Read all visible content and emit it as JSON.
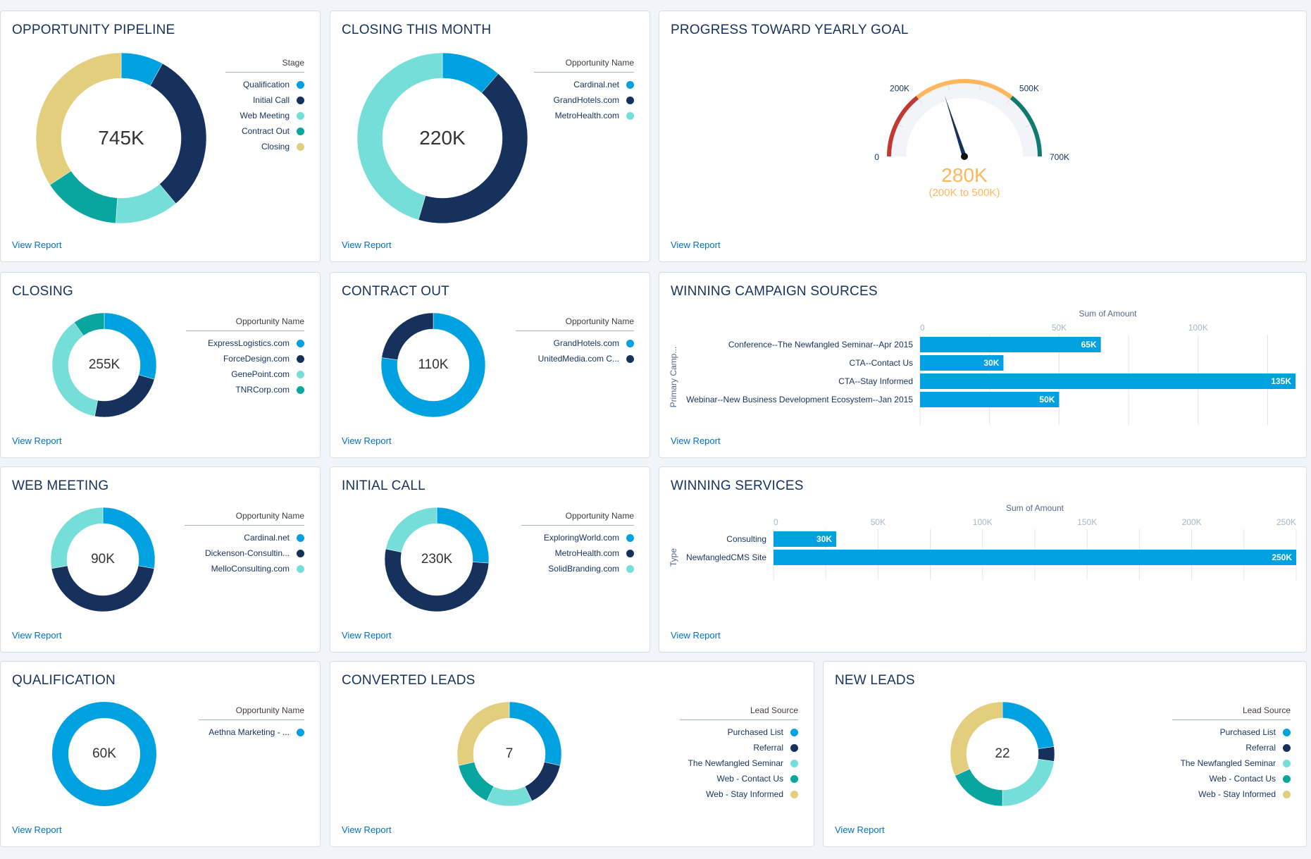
{
  "colors": {
    "blue": "#00a1e0",
    "navy": "#16325c",
    "turquoise": "#76ded9",
    "teal": "#08a69e",
    "gold": "#e2ce7d",
    "gauge_red": "#c23934",
    "gauge_orange": "#ffb75d",
    "gauge_green": "#107a6e",
    "link": "#0070d2"
  },
  "view_report_label": "View Report",
  "cards": {
    "pipeline": {
      "title": "OPPORTUNITY PIPELINE",
      "center": "745K",
      "legend_title": "Stage",
      "legend": [
        {
          "label": "Qualification",
          "color": "#00a1e0"
        },
        {
          "label": "Initial Call",
          "color": "#16325c"
        },
        {
          "label": "Web Meeting",
          "color": "#76ded9"
        },
        {
          "label": "Contract Out",
          "color": "#08a69e"
        },
        {
          "label": "Closing",
          "color": "#e2ce7d"
        }
      ]
    },
    "closing_month": {
      "title": "CLOSING THIS MONTH",
      "center": "220K",
      "legend_title": "Opportunity Name",
      "legend": [
        {
          "label": "Cardinal.net",
          "color": "#00a1e0"
        },
        {
          "label": "GrandHotels.com",
          "color": "#16325c"
        },
        {
          "label": "MetroHealth.com",
          "color": "#76ded9"
        }
      ]
    },
    "goal": {
      "title": "PROGRESS TOWARD YEARLY GOAL",
      "value_label": "280K",
      "range_label": "(200K to 500K)",
      "tick_labels": [
        "0",
        "200K",
        "500K",
        "700K"
      ]
    },
    "closing": {
      "title": "CLOSING",
      "center": "255K",
      "legend_title": "Opportunity Name",
      "legend": [
        {
          "label": "ExpressLogistics.com",
          "color": "#00a1e0"
        },
        {
          "label": "ForceDesign.com",
          "color": "#16325c"
        },
        {
          "label": "GenePoint.com",
          "color": "#76ded9"
        },
        {
          "label": "TNRCorp.com",
          "color": "#08a69e"
        }
      ]
    },
    "contract_out": {
      "title": "CONTRACT OUT",
      "center": "110K",
      "legend_title": "Opportunity Name",
      "legend": [
        {
          "label": "GrandHotels.com",
          "color": "#00a1e0"
        },
        {
          "label": "UnitedMedia.com C...",
          "color": "#16325c"
        }
      ]
    },
    "campaign_sources": {
      "title": "WINNING CAMPAIGN SOURCES"
    },
    "web_meeting": {
      "title": "WEB MEETING",
      "center": "90K",
      "legend_title": "Opportunity Name",
      "legend": [
        {
          "label": "Cardinal.net",
          "color": "#00a1e0"
        },
        {
          "label": "Dickenson-Consultin...",
          "color": "#16325c"
        },
        {
          "label": "MelloConsulting.com",
          "color": "#76ded9"
        }
      ]
    },
    "initial_call": {
      "title": "INITIAL CALL",
      "center": "230K",
      "legend_title": "Opportunity Name",
      "legend": [
        {
          "label": "ExploringWorld.com",
          "color": "#00a1e0"
        },
        {
          "label": "MetroHealth.com",
          "color": "#16325c"
        },
        {
          "label": "SolidBranding.com",
          "color": "#76ded9"
        }
      ]
    },
    "winning_services": {
      "title": "WINNING SERVICES"
    },
    "qualification": {
      "title": "QUALIFICATION",
      "center": "60K",
      "legend_title": "Opportunity Name",
      "legend": [
        {
          "label": "Aethna Marketing - ...",
          "color": "#00a1e0"
        }
      ]
    },
    "converted_leads": {
      "title": "CONVERTED LEADS",
      "center": "7",
      "legend_title": "Lead Source",
      "legend": [
        {
          "label": "Purchased List",
          "color": "#00a1e0"
        },
        {
          "label": "Referral",
          "color": "#16325c"
        },
        {
          "label": "The Newfangled Seminar",
          "color": "#76ded9"
        },
        {
          "label": "Web - Contact Us",
          "color": "#08a69e"
        },
        {
          "label": "Web - Stay Informed",
          "color": "#e2ce7d"
        }
      ]
    },
    "new_leads": {
      "title": "NEW LEADS",
      "center": "22",
      "legend_title": "Lead Source",
      "legend": [
        {
          "label": "Purchased List",
          "color": "#00a1e0"
        },
        {
          "label": "Referral",
          "color": "#16325c"
        },
        {
          "label": "The Newfangled Seminar",
          "color": "#76ded9"
        },
        {
          "label": "Web - Contact Us",
          "color": "#08a69e"
        },
        {
          "label": "Web - Stay Informed",
          "color": "#e2ce7d"
        }
      ]
    }
  },
  "chart_data": [
    {
      "id": "pipeline",
      "type": "pie",
      "title": "OPPORTUNITY PIPELINE",
      "categories": [
        "Qualification",
        "Initial Call",
        "Web Meeting",
        "Contract Out",
        "Closing"
      ],
      "values": [
        60,
        230,
        90,
        110,
        255
      ],
      "total_label": "745K"
    },
    {
      "id": "closing_month",
      "type": "pie",
      "title": "CLOSING THIS MONTH",
      "categories": [
        "Cardinal.net",
        "GrandHotels.com",
        "MetroHealth.com"
      ],
      "values": [
        25,
        95,
        100
      ],
      "total_label": "220K"
    },
    {
      "id": "goal",
      "type": "gauge",
      "title": "PROGRESS TOWARD YEARLY GOAL",
      "min": 0,
      "max": 700,
      "value": 280,
      "bands": [
        {
          "from": 0,
          "to": 200,
          "color": "#c23934"
        },
        {
          "from": 200,
          "to": 500,
          "color": "#ffb75d"
        },
        {
          "from": 500,
          "to": 700,
          "color": "#107a6e"
        }
      ]
    },
    {
      "id": "closing",
      "type": "pie",
      "title": "CLOSING",
      "categories": [
        "ExpressLogistics.com",
        "ForceDesign.com",
        "GenePoint.com",
        "TNRCorp.com"
      ],
      "values": [
        75,
        60,
        95,
        25
      ],
      "total_label": "255K"
    },
    {
      "id": "contract_out",
      "type": "pie",
      "title": "CONTRACT OUT",
      "categories": [
        "GrandHotels.com",
        "UnitedMedia.com C..."
      ],
      "values": [
        85,
        25
      ],
      "total_label": "110K"
    },
    {
      "id": "campaign_sources",
      "type": "bar",
      "orientation": "horizontal",
      "title": "WINNING CAMPAIGN SOURCES",
      "xlabel": "Sum of Amount",
      "ylabel": "Primary Camp...",
      "categories": [
        "Conference--The Newfangled Seminar--Apr 2015",
        "CTA--Contact Us",
        "CTA--Stay Informed",
        "Webinar--New Business Development Ecosystem--Jan 2015"
      ],
      "values": [
        65,
        30,
        135,
        50
      ],
      "value_labels": [
        "65K",
        "30K",
        "135K",
        "50K"
      ],
      "xlim": [
        0,
        135
      ],
      "ticks": [
        0,
        50,
        100
      ],
      "tick_labels": [
        "0",
        "50K",
        "100K"
      ]
    },
    {
      "id": "web_meeting",
      "type": "pie",
      "title": "WEB MEETING",
      "categories": [
        "Cardinal.net",
        "Dickenson-Consultin...",
        "MelloConsulting.com"
      ],
      "values": [
        25,
        40,
        25
      ],
      "total_label": "90K"
    },
    {
      "id": "initial_call",
      "type": "pie",
      "title": "INITIAL CALL",
      "categories": [
        "ExploringWorld.com",
        "MetroHealth.com",
        "SolidBranding.com"
      ],
      "values": [
        60,
        120,
        50
      ],
      "total_label": "230K"
    },
    {
      "id": "winning_services",
      "type": "bar",
      "orientation": "horizontal",
      "title": "WINNING SERVICES",
      "xlabel": "Sum of Amount",
      "ylabel": "Type",
      "categories": [
        "Consulting",
        "NewfangledCMS Site"
      ],
      "values": [
        30,
        250
      ],
      "value_labels": [
        "30K",
        "250K"
      ],
      "xlim": [
        0,
        250
      ],
      "ticks": [
        0,
        50,
        100,
        150,
        200,
        250
      ],
      "tick_labels": [
        "0",
        "50K",
        "100K",
        "150K",
        "200K",
        "250K"
      ]
    },
    {
      "id": "qualification",
      "type": "pie",
      "title": "QUALIFICATION",
      "categories": [
        "Aethna Marketing - ..."
      ],
      "values": [
        60
      ],
      "total_label": "60K"
    },
    {
      "id": "converted_leads",
      "type": "pie",
      "title": "CONVERTED LEADS",
      "categories": [
        "Purchased List",
        "Referral",
        "The Newfangled Seminar",
        "Web - Contact Us",
        "Web - Stay Informed"
      ],
      "values": [
        2,
        1,
        1,
        1,
        2
      ],
      "total_label": "7"
    },
    {
      "id": "new_leads",
      "type": "pie",
      "title": "NEW LEADS",
      "categories": [
        "Purchased List",
        "Referral",
        "The Newfangled Seminar",
        "Web - Contact Us",
        "Web - Stay Informed"
      ],
      "values": [
        5,
        1,
        5,
        4,
        7
      ],
      "total_label": "22"
    }
  ]
}
